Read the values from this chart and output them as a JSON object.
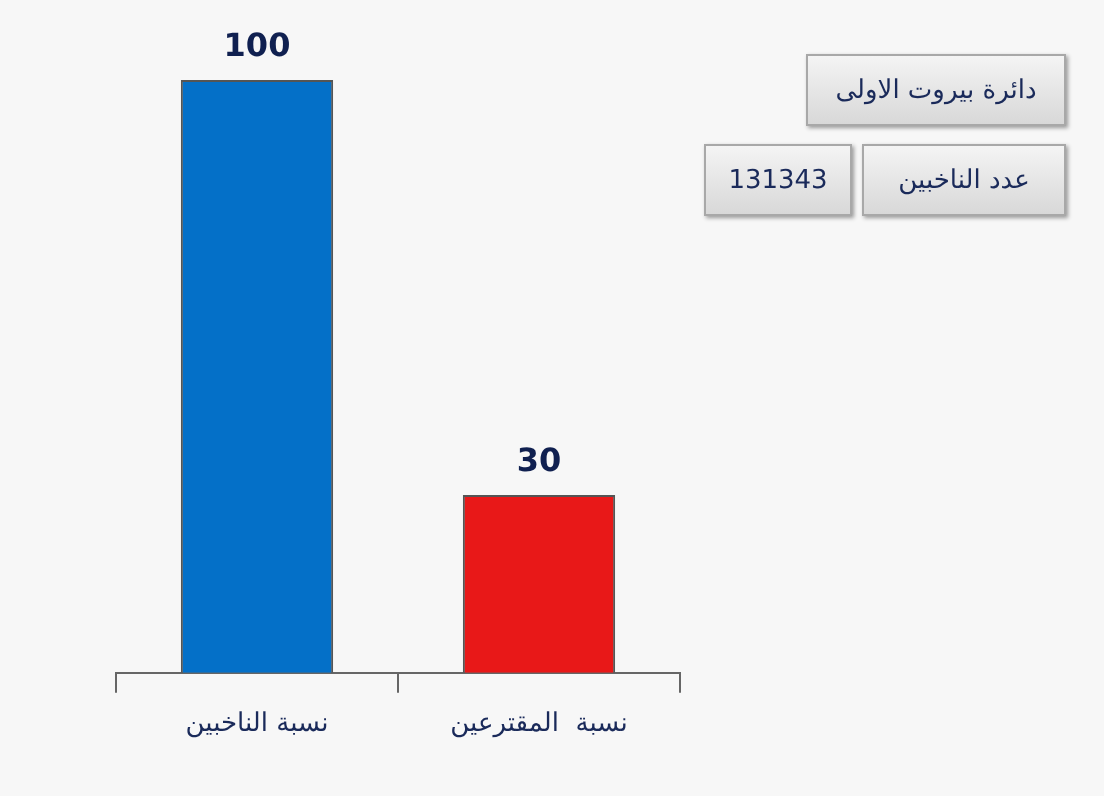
{
  "chart_data": {
    "type": "bar",
    "categories": [
      "نسبة الناخبين",
      "نسبة  المقترعين"
    ],
    "values": [
      100,
      30
    ],
    "colors": [
      "#0470c8",
      "#e81818"
    ],
    "data_labels": true,
    "annotations": [
      "دائرة بيروت الاولى",
      "عدد الناخبين",
      "131343"
    ],
    "grid": false,
    "legend": false
  }
}
